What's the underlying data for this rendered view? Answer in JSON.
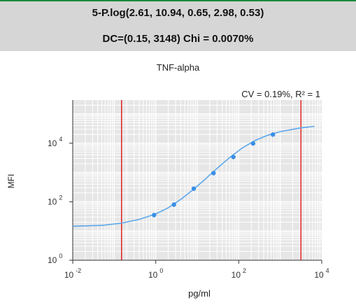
{
  "header": {
    "line1": "5-P.log(2.61, 10.94, 0.65, 2.98, 0.53)",
    "line2": "DC=(0.15, 3148) Chi = 0.0070%"
  },
  "chart_data": {
    "type": "scatter",
    "title": "TNF-alpha",
    "xlabel": "pg/ml",
    "ylabel": "MFI",
    "annotation": "CV = 0.19%,  R² = 1",
    "x_scale": "log",
    "y_scale": "log",
    "xlim": [
      0.01,
      10000
    ],
    "ylim": [
      1,
      300000
    ],
    "x_ticks": [
      0.01,
      1,
      100,
      10000
    ],
    "x_tick_labels": [
      [
        "10",
        "-2"
      ],
      [
        "10",
        "0"
      ],
      [
        "10",
        "2"
      ],
      [
        "10",
        "4"
      ]
    ],
    "y_ticks": [
      1,
      100,
      10000
    ],
    "y_tick_labels": [
      [
        "10",
        "0"
      ],
      [
        "10",
        "2"
      ],
      [
        "10",
        "4"
      ]
    ],
    "grid": true,
    "detection_limits": [
      0.15,
      3148
    ],
    "points": {
      "x": [
        0.91,
        2.75,
        8.25,
        24.7,
        74.1,
        222,
        667
      ],
      "y": [
        35,
        80,
        280,
        950,
        3400,
        9800,
        19800
      ]
    },
    "curve": {
      "x": [
        0.01,
        0.05,
        0.15,
        0.4,
        1,
        2,
        4,
        8,
        15,
        30,
        60,
        120,
        250,
        500,
        1000,
        3148,
        6700
      ],
      "y": [
        14.5,
        15.5,
        18.5,
        25,
        38,
        62,
        120,
        260,
        560,
        1380,
        3200,
        6800,
        12500,
        18800,
        25000,
        33500,
        38000
      ]
    },
    "colors": {
      "curve": "#5aa7ec",
      "points": "#3a8fe6",
      "limit_lines": "#e02020",
      "plot_bg": "#e6e6e6",
      "grid": "#ffffff"
    }
  }
}
